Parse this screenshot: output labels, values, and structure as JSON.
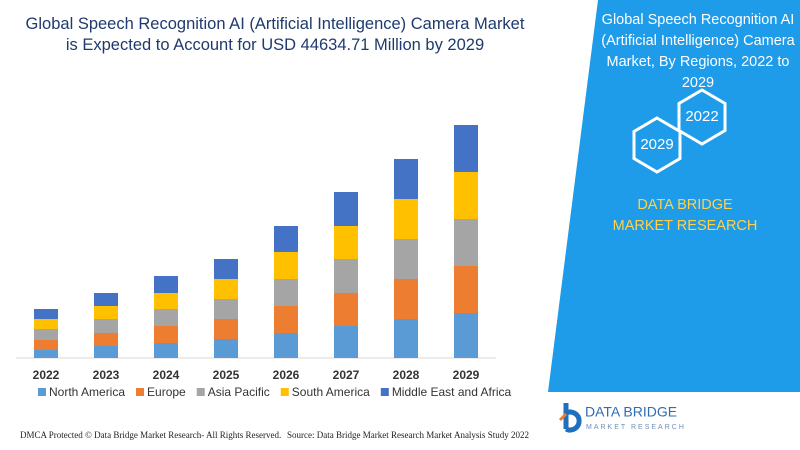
{
  "chart_data": {
    "type": "bar",
    "stacked": true,
    "title": "Global Speech Recognition AI (Artificial Intelligence) Camera Market is Expected to Account for USD 44634.71 Million by 2029",
    "categories": [
      "2022",
      "2023",
      "2024",
      "2025",
      "2026",
      "2027",
      "2028",
      "2029"
    ],
    "series": [
      {
        "name": "North America",
        "color": "#5b9bd5",
        "values": [
          8,
          12,
          15,
          19,
          25,
          32,
          39,
          45
        ]
      },
      {
        "name": "Europe",
        "color": "#ed7d31",
        "values": [
          10,
          13,
          17,
          20,
          27,
          33,
          40,
          47
        ]
      },
      {
        "name": "Asia Pacific",
        "color": "#a5a5a5",
        "values": [
          11,
          14,
          17,
          20,
          27,
          34,
          40,
          47
        ]
      },
      {
        "name": "South America",
        "color": "#ffc000",
        "values": [
          10,
          13,
          16,
          20,
          27,
          33,
          40,
          47
        ]
      },
      {
        "name": "Middle East and Africa",
        "color": "#4472c4",
        "values": [
          10,
          13,
          17,
          20,
          26,
          34,
          40,
          47
        ]
      }
    ],
    "ylim": [
      0,
      240
    ],
    "legend": "bottom"
  },
  "panel": {
    "title": "Global Speech Recognition AI (Artificial Intelligence) Camera Market, By Regions, 2022 to 2029",
    "years": [
      "2022",
      "2029"
    ],
    "brand": "DATA BRIDGE MARKET RESEARCH"
  },
  "logo": {
    "name": "DATA BRIDGE",
    "tagline": "MARKET RESEARCH"
  },
  "footer": {
    "left": "DMCA Protected © Data Bridge Market Research- All Rights Reserved.",
    "right": "Source: Data Bridge Market Research Market Analysis Study 2022"
  }
}
